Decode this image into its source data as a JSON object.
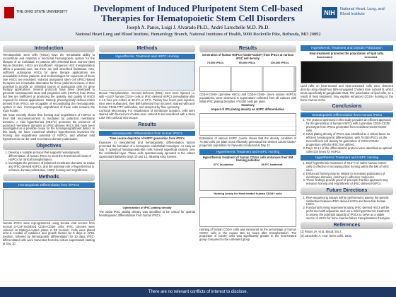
{
  "header": {
    "university": "THE OHIO STATE UNIVERSITY",
    "title_line1": "Development of Induced Pluripotent Stem Cell-based",
    "title_line2": "Therapies for Hematopoietic Stem Cell Disorders",
    "authors": "Joseph A. Panos, Luigi J. Alvarado Ph.D., André Larochelle M.D. Ph.D.",
    "affiliation": "National Heart Lung and Blood Institute, Hematology Branch, National Institutes of Health, 9000 Rockville Pike, Bethesda, MD 20892",
    "nih": "National Heart, Lung, and Blood Institute"
  },
  "col1": {
    "intro_title": "Introduction",
    "intro": [
      "Hematopoietic stem cells (HSCs) have the remarkable ability to reconstitute and maintain a functional hematopoietic system for the lifespan of an individual. In patients with inherited bone marrow (BM) failure disorders, HSCs are insufficient. Allogeneic HSC transplantation offers a potential cure, but there are well described limitations. Also, sufficient autologous HSCs for gene therapy applications are unavailable in these patients, and methodologies for expansion of these rare HSCs are inexistent. Induced pluripotent stem cell (iPSC)-based therapies are a tractable alternative for these patients because of their potential to provide an unlimited source of autologous cells for gene therapy applications. Several protocols have been developed to generate hematopoietic stem and progenitor cells (HSPCs) from iPSCs but few are inefficient at producing the quantity and quality of HSCs required for clinical applications. Namely, phenotypically defined HSCs derived from iPSCs are incapable of reconstituting the hematopoietic system in vivo. Consequently, engraftment of these cells remains the main hurdle.",
      "We have recently shown that homing and engraftment of HSPCs to their BM microenvironment is mediated by polarized membrane domains. A mild hyperthermia (39.5°C) promotes the presence of polarized membrane domains on iPSC-derived HSCs that have been investigated as a possible cause for the homing/engraftment defect. In this study, we have examined whether hyperthermia improves the homing and engraftment potential of HSPCs, and whether mild hyperthermia can be used to enhance domain polarization."
    ],
    "obj_title": "Objectives",
    "objectives": [
      "Develop a suitable protocol that supports hematopoietic differentiation of human iPSCs to meet the threshold cell dose of HSPCs for clinical transplantation.",
      "Investigate the presence of polarized membrane domains on native and iPSC-derived HSPCs, and the potential role of hyperthermia to enhance domain polarization, HSPC homing and engraftment."
    ],
    "methods_title": "Methods",
    "methods_sub": "Hematopoietic Differentiation from hiPSCs",
    "methods_text": "Human iPSCs were reprogrammed using Sendai viral vectors from normal G-CSF-mobilized CD34+CD38- cells. iPSC colonies were cultured on Matrigel-coated plates in E8 medium. Cells were plated onto a cocktail of cytokines and growth factors for 5 days in APEL medium, followed by hematopoietic differentiation for 10 days. iPSC-differentiated cells were harvested from the culture supernatant starting at Day 10."
  },
  "col2": {
    "methods_title": "Methods",
    "methods_sub": "Hyperthermic Treatment and HSPC Homing",
    "mouse": "Mouse Transplantation. Immune-deficient (NSG) mice were injected i.v. with ~1x10⁶ human CD34+ cells or iPSC-derived HSPCs immediately after a 4.5 hour pre-culture at 39.5°C or 37°C. Twenty-four hours post-injection, mice were euthanized, their BM harvested from 8 bones, stained with anti-human CD45-FITC antibodies, and analyzed by flow cytometry.",
    "confocal": "Confocal Microscopy. For visualization of membrane domains, cells were stained with fluorescent cholera toxin subunit B and visualized with a Zeiss LSM 780 confocal microscope.",
    "results_title": "Results",
    "results_sub": "Hematopoietic Differentiation from Human iPSCs",
    "time_title": "Time course depiction of HSPC generation from iPSCs",
    "time_text": "Exposure to mesodermal and hematopoietic differentiation factors promoted the formation of a hemogenic endothelial monolayer. As early as Day 7, spherical hematopoietic-like cells formed superficial clusters over the endothelial layer. These cells spontaneously sprouted in the culture supernatant between Days 10 and 14, allowing easy harvest.",
    "opt_caption": "Optimization of iPSC plating density",
    "opt_text": "The initial iPSC plating density was identified to be critical for optimal hematopoietic differentiation from human iPSCs."
  },
  "col3": {
    "results_title": "Results",
    "gen_title": "Generation of human HSPCs (CD45+CD34+) from iPSCs at various iPSC cell density",
    "densities": [
      "70,000 iPSCs",
      "90,000 iPSCs",
      "100,000 iPSCs"
    ],
    "gen_text": "CD34+CD45+ (primitive HSCs) and CD34+CD45+ (more mature HSPCs) populations, were observed in supernatant collected from all cultures with initial iPSC plating densities >70,000 cells per plate.",
    "summary_title": "Summary",
    "summary_sub": "Impact of iPS plating density on HSPC differentiation",
    "est_text": "Estimation of various HSPC counts shows that the density condition of 70,000 cells per plate most efficiently generated the desired CD34+CD45+ progenitor population for harvests conducted at Day 12.",
    "homing_sub": "Hyperthermic Treatment and HSPC Homing",
    "homing_title": "Hyperthermic treatment of human CD34+ cells enhances their BM homing potential",
    "conditions": [
      "37°C Incubation",
      "39.5°C treatment"
    ],
    "chart_title": "Homing Assay for Heat-treated human CD34+ cells",
    "homing_text": "Homing of human CD34+ cells was measured as the percentage of human CD45+ cells in the mouse BM 24 hours after transplantation. The proportion of CD45+ cells was significantly greater in the heat-treated group compared to the untreated group."
  },
  "col4": {
    "polar_sub": "Hyperthermic Treatment and Domain Polarization",
    "polar_title": "Heat-treatment promotes the polarization of lipid rafts.",
    "panels": [
      "Heat-treated",
      "Untreated"
    ],
    "polar_text": "Lipid rafts on heat-treated and heat-untreated cells were detected directly using AlexaFluor 555-conjugated Cholera toxin subunit B, which binds specifically to ganglioside GM1. The polarization of lipid rafts, as a result of heat treatment, may explain enhanced CD34+ homing to the bone marrow niche.",
    "concl_title": "Conclusions",
    "concl_sub1": "Hematopoietic Differentiation from Human iPSCs",
    "concl1": [
      "The protocol optimized in this study provides an efficient approach for the generation of human HSPCs with a primitive CD34+CD38- phenotype from iPSCs generated from mobilized CD34+CD38- cells.",
      "Initial plating density of iPSCs was identified as a critical factor for efficient hematopoietic differentiation, with 70,000 iPSCs as the most efficient cell density for generation of CD34+CD45+ progenitors with the iPSC line utilized.",
      "Days 10-14 of the differentiation protocol were identified as optimal collection times for HSPCs."
    ],
    "concl_sub2": "Hyperthermic Treatment and HSPC Homing",
    "concl2": [
      "Brief hyperthermic treatment of 39.5°C of native human CD34+ cells is effective in increasing their homing within the BM of NSG mice.",
      "Enhanced homing may be related to increased polarization of membrane domains, enriched in adhesion molecules.",
      "These findings provide proof-of-principle that this approach may enhance homing and engraftment of iPSC-derived HSPCs."
    ],
    "future_title": "Future Directions",
    "future": [
      "RNA-sequencing assays will be performed to assess the genetic similarities between iPSC-derived HSCs and bona fide human HSCs.",
      "Functional homing experiments using iPSC-derived HSCs will be performed with adjuvants, such as a mild hyperthermic treatment, to assess the potential capacity of iPSCs to serve as a viable source of HSCs for bone-marrow failure transplantation therapies."
    ],
    "ref_title": "References",
    "refs": [
      "[1] Panos JA, et al. Blood. 2017.",
      "[2] Larochelle A, et al. Stem Cells. 2018."
    ]
  },
  "footer": "There are no relevant conflicts of interest to disclose."
}
